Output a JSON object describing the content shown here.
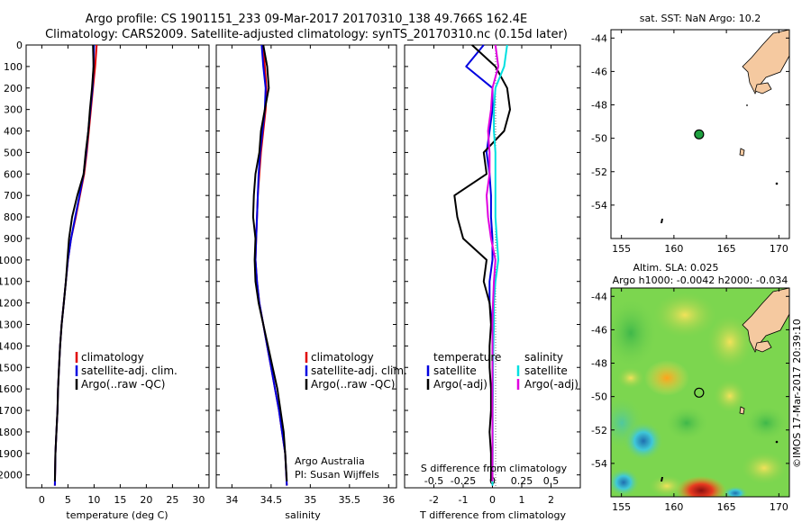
{
  "header": {
    "line1": "Argo profile: CS 1901151_233 09-Mar-2017 20170310_138 49.766S 162.4E",
    "line2": "Climatology: CARS2009. Satellite-adjusted climatology: synTS_20170310.nc (0.15d later)"
  },
  "panels": {
    "temperature": {
      "xlabel": "temperature (deg C)",
      "xticks": [
        "0",
        "5",
        "10",
        "15",
        "20",
        "25",
        "30"
      ],
      "xvals": [
        0,
        5,
        10,
        15,
        20,
        25,
        30
      ],
      "xlim": [
        -3,
        32
      ],
      "legend": [
        "climatology",
        "satellite-adj. clim.",
        "Argo(..raw -QC)"
      ]
    },
    "salinity": {
      "xlabel": "salinity",
      "xticks": [
        "34",
        "34.5",
        "35",
        "35.5",
        "36"
      ],
      "xvals": [
        34,
        34.5,
        35,
        35.5,
        36
      ],
      "xlim": [
        33.8,
        36.1
      ],
      "legend": [
        "climatology",
        "satellite-adj. clim.",
        "Argo(..raw -QC)"
      ],
      "credit1": "Argo Australia",
      "credit2": "PI: Susan Wijffels"
    },
    "difference": {
      "top_label": "S difference from climatology",
      "top_ticks": [
        "-0.5",
        "-0.25",
        "0",
        "0.25",
        "0.5"
      ],
      "top_vals": [
        -0.5,
        -0.25,
        0,
        0.25,
        0.5
      ],
      "xlabel": "T difference from climatology",
      "xticks": [
        "-2",
        "-1",
        "0",
        "1",
        "2"
      ],
      "xvals": [
        -2,
        -1,
        0,
        1,
        2
      ],
      "xlim": [
        -3,
        3
      ],
      "legend_temp_title": "temperature",
      "legend_temp": [
        "satellite",
        "Argo(-adj)"
      ],
      "legend_sal_title": "salinity",
      "legend_sal": [
        "satellite",
        "Argo(-adj)"
      ]
    },
    "depth": {
      "ticks": [
        "0",
        "100",
        "200",
        "300",
        "400",
        "500",
        "600",
        "700",
        "800",
        "900",
        "1000",
        "1100",
        "1200",
        "1300",
        "1400",
        "1500",
        "1600",
        "1700",
        "1800",
        "1900",
        "2000"
      ],
      "ylim": [
        0,
        2060
      ]
    }
  },
  "maps": {
    "sst_title": "sat. SST: NaN Argo: 10.2",
    "sla_title1": "Altim. SLA: 0.025",
    "sla_title2": "Argo h1000: -0.0042 h2000: -0.034",
    "lat_ticks": [
      "-44",
      "-46",
      "-48",
      "-50",
      "-52",
      "-54"
    ],
    "lon_ticks": [
      "155",
      "160",
      "165",
      "170"
    ],
    "lon_range": [
      154,
      171
    ],
    "lat_range": [
      -56,
      -43.5
    ],
    "float_lon": 162.4,
    "float_lat": -49.766
  },
  "watermark": "©IMOS 17-Mar-2017 20:39:10",
  "colors": {
    "climatology": "#e00000",
    "satellite": "#0000e0",
    "argo": "#000000",
    "sal_satellite": "#00e0e0",
    "sal_argo": "#e000e0",
    "land": "#f5c9a0",
    "float_marker": "#1fa040"
  },
  "chart_data": [
    {
      "type": "line",
      "title": "",
      "xlabel": "temperature (deg C)",
      "ylabel": "",
      "xlim": [
        -3,
        32
      ],
      "ylim": [
        0,
        2060
      ],
      "series": [
        {
          "name": "climatology",
          "x": [
            10.5,
            10.2,
            9.8,
            9.4,
            9.0,
            8.6,
            8.1,
            7.3,
            6.5,
            5.6,
            5.0,
            4.6,
            4.2,
            3.8,
            3.5,
            3.3,
            3.1,
            3.0,
            2.8,
            2.6,
            2.5
          ],
          "y": [
            0,
            100,
            200,
            300,
            400,
            500,
            600,
            700,
            800,
            900,
            1000,
            1100,
            1200,
            1300,
            1400,
            1500,
            1600,
            1700,
            1800,
            1900,
            2050
          ]
        },
        {
          "name": "satellite-adj. clim.",
          "x": [
            10.0,
            9.9,
            9.7,
            9.3,
            8.9,
            8.5,
            8.0,
            7.2,
            6.4,
            5.6,
            5.0,
            4.6,
            4.2,
            3.8,
            3.5,
            3.3,
            3.1,
            3.0,
            2.8,
            2.6,
            2.5
          ],
          "y": [
            0,
            100,
            200,
            300,
            400,
            500,
            600,
            700,
            800,
            900,
            1000,
            1100,
            1200,
            1300,
            1400,
            1500,
            1600,
            1700,
            1800,
            1900,
            2050
          ]
        },
        {
          "name": "Argo(..raw -QC)",
          "x": [
            9.8,
            9.9,
            9.6,
            9.2,
            8.9,
            8.4,
            8.0,
            6.8,
            5.8,
            5.2,
            4.9,
            4.6,
            4.2,
            3.8,
            3.5,
            3.3,
            3.1,
            3.0,
            2.8,
            2.6,
            2.5
          ],
          "y": [
            0,
            100,
            200,
            300,
            400,
            500,
            600,
            700,
            800,
            900,
            1000,
            1100,
            1200,
            1300,
            1400,
            1500,
            1600,
            1700,
            1800,
            1900,
            2030
          ]
        }
      ]
    },
    {
      "type": "line",
      "title": "",
      "xlabel": "salinity",
      "ylabel": "",
      "xlim": [
        33.8,
        36.1
      ],
      "ylim": [
        0,
        2060
      ],
      "series": [
        {
          "name": "climatology",
          "x": [
            34.4,
            34.42,
            34.44,
            34.43,
            34.4,
            34.37,
            34.35,
            34.33,
            34.32,
            34.31,
            34.3,
            34.32,
            34.35,
            34.4,
            34.45,
            34.5,
            34.55,
            34.6,
            34.64,
            34.68,
            34.7
          ],
          "y": [
            0,
            100,
            200,
            300,
            400,
            500,
            600,
            700,
            800,
            900,
            1000,
            1100,
            1200,
            1300,
            1400,
            1500,
            1600,
            1700,
            1800,
            1900,
            2050
          ]
        },
        {
          "name": "satellite-adj. clim.",
          "x": [
            34.38,
            34.4,
            34.43,
            34.42,
            34.39,
            34.36,
            34.34,
            34.33,
            34.32,
            34.31,
            34.3,
            34.32,
            34.35,
            34.4,
            34.45,
            34.5,
            34.55,
            34.6,
            34.64,
            34.68,
            34.7
          ],
          "y": [
            0,
            100,
            200,
            300,
            400,
            500,
            600,
            700,
            800,
            900,
            1000,
            1100,
            1200,
            1300,
            1400,
            1500,
            1600,
            1700,
            1800,
            1900,
            2050
          ]
        },
        {
          "name": "Argo(..raw -QC)",
          "x": [
            34.4,
            34.45,
            34.47,
            34.42,
            34.37,
            34.35,
            34.3,
            34.28,
            34.27,
            34.3,
            34.29,
            34.3,
            34.34,
            34.4,
            34.46,
            34.52,
            34.58,
            34.62,
            34.66,
            34.68,
            34.7
          ],
          "y": [
            0,
            100,
            200,
            300,
            400,
            500,
            600,
            700,
            800,
            900,
            1000,
            1100,
            1200,
            1300,
            1400,
            1500,
            1600,
            1700,
            1800,
            1900,
            2030
          ]
        }
      ]
    },
    {
      "type": "line",
      "title": "",
      "xlabel": "T difference from climatology",
      "ylabel": "",
      "xlim": [
        -3,
        3
      ],
      "ylim": [
        0,
        2060
      ],
      "series": [
        {
          "name": "temperature satellite",
          "x": [
            -0.3,
            -0.9,
            0.0,
            0.0,
            -0.1,
            -0.2,
            -0.1,
            -0.05,
            -0.05,
            0.0,
            0.0,
            -0.1,
            -0.1,
            0.0,
            0.0,
            0.0,
            0.0,
            0.0,
            0.0,
            0.0,
            0.0
          ],
          "y": [
            0,
            100,
            200,
            300,
            400,
            500,
            600,
            700,
            800,
            900,
            1000,
            1100,
            1200,
            1300,
            1400,
            1500,
            1600,
            1700,
            1800,
            1900,
            2050
          ]
        },
        {
          "name": "temperature Argo(-adj)",
          "x": [
            -0.7,
            0.1,
            0.5,
            0.6,
            0.4,
            -0.3,
            -0.2,
            -1.3,
            -1.2,
            -1.0,
            -0.2,
            -0.3,
            -0.1,
            -0.05,
            -0.1,
            -0.1,
            -0.05,
            -0.05,
            -0.1,
            -0.05,
            -0.05
          ],
          "y": [
            0,
            100,
            200,
            300,
            400,
            500,
            600,
            700,
            800,
            900,
            1000,
            1100,
            1200,
            1300,
            1400,
            1500,
            1600,
            1700,
            1800,
            1900,
            2030
          ]
        },
        {
          "name": "salinity satellite",
          "x": [
            0.5,
            0.4,
            0.1,
            0.05,
            0.05,
            0.1,
            0.1,
            0.1,
            0.1,
            0.15,
            0.2,
            0.1,
            0.05,
            0.05,
            0.03,
            0.02,
            0.02,
            0.01,
            0.01,
            0.01,
            0.0
          ],
          "y": [
            0,
            100,
            200,
            300,
            400,
            500,
            600,
            700,
            800,
            900,
            1000,
            1100,
            1200,
            1300,
            1400,
            1500,
            1600,
            1700,
            1800,
            1900,
            2050
          ]
        },
        {
          "name": "salinity Argo(-adj)",
          "x": [
            0.1,
            0.2,
            0.0,
            -0.05,
            -0.15,
            -0.1,
            -0.1,
            -0.2,
            -0.15,
            -0.05,
            0.1,
            0.05,
            0.02,
            0.0,
            0.0,
            0.0,
            0.0,
            0.0,
            0.0,
            0.0,
            0.0
          ],
          "y": [
            0,
            100,
            200,
            300,
            400,
            500,
            600,
            700,
            800,
            900,
            1000,
            1100,
            1200,
            1300,
            1400,
            1500,
            1600,
            1700,
            1800,
            1900,
            2030
          ]
        }
      ]
    }
  ]
}
